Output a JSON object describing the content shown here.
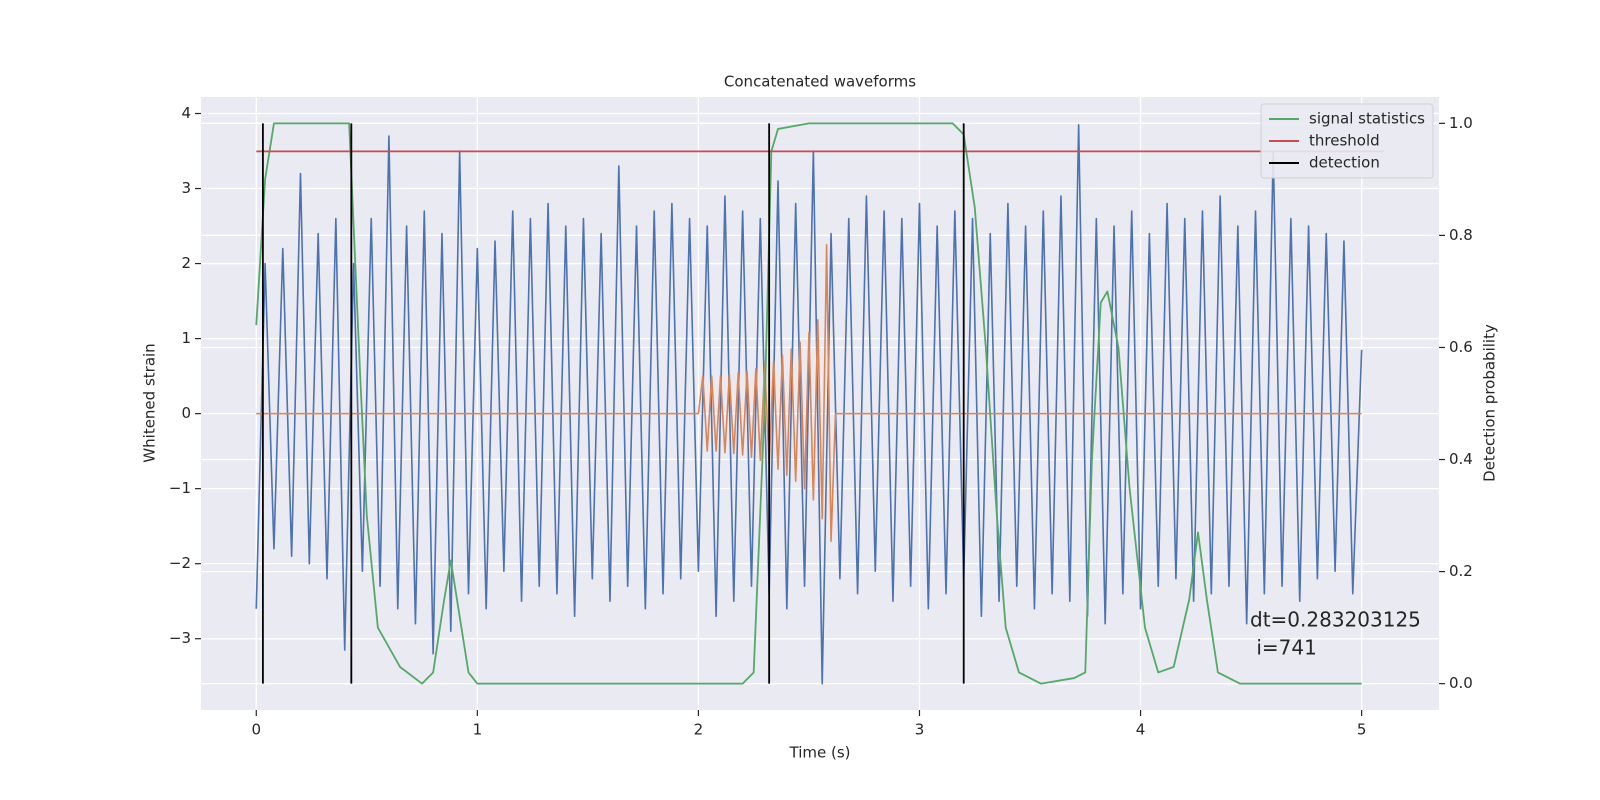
{
  "chart_data": {
    "type": "line",
    "title": "Concatenated waveforms",
    "x_label": "Time (s)",
    "y_label": "Whitened strain",
    "y2_label": "Detection probability",
    "xlim": [
      -0.25,
      5.35
    ],
    "xticks": [
      0,
      1,
      2,
      3,
      4,
      5
    ],
    "ylim": [
      -3.95,
      4.22
    ],
    "yticks": [
      {
        "value": -3,
        "label": "−3"
      },
      {
        "value": -2,
        "label": "−2"
      },
      {
        "value": -1,
        "label": "−1"
      },
      0,
      1,
      2,
      3,
      4
    ],
    "y2lim": [
      -0.047,
      1.047
    ],
    "y2ticks": [
      {
        "value": 0,
        "label": "0.0"
      },
      0.2,
      0.4,
      0.6,
      0.8,
      {
        "value": 1,
        "label": "1.0"
      }
    ],
    "grid": true,
    "legend": "upper right",
    "annotation": [
      "dt=0.283203125",
      " i=741"
    ],
    "series": [
      {
        "color": "#4c72b0",
        "axis": "y",
        "x": [
          0,
          0.04,
          0.08,
          0.12,
          0.16,
          0.2,
          0.24,
          0.28,
          0.32,
          0.36,
          0.4,
          0.44,
          0.48,
          0.52,
          0.56,
          0.6,
          0.64,
          0.68,
          0.72,
          0.76,
          0.8,
          0.84,
          0.88,
          0.92,
          0.96,
          1,
          1.04,
          1.08,
          1.12,
          1.16,
          1.2,
          1.24,
          1.28,
          1.32,
          1.36,
          1.4,
          1.44,
          1.48,
          1.52,
          1.56,
          1.6,
          1.64,
          1.68,
          1.72,
          1.76,
          1.8,
          1.84,
          1.88,
          1.92,
          1.96,
          2,
          2.04,
          2.08,
          2.12,
          2.16,
          2.2,
          2.24,
          2.28,
          2.32,
          2.36,
          2.4,
          2.44,
          2.48,
          2.52,
          2.56,
          2.6,
          2.64,
          2.68,
          2.72,
          2.76,
          2.8,
          2.84,
          2.88,
          2.92,
          2.96,
          3,
          3.04,
          3.08,
          3.12,
          3.16,
          3.2,
          3.24,
          3.28,
          3.32,
          3.36,
          3.4,
          3.44,
          3.48,
          3.52,
          3.56,
          3.6,
          3.64,
          3.68,
          3.72,
          3.76,
          3.8,
          3.84,
          3.88,
          3.92,
          3.96,
          4,
          4.04,
          4.08,
          4.12,
          4.16,
          4.2,
          4.24,
          4.28,
          4.32,
          4.36,
          4.4,
          4.44,
          4.48,
          4.52,
          4.56,
          4.6,
          4.64,
          4.68,
          4.72,
          4.76,
          4.8,
          4.84,
          4.88,
          4.92,
          4.96,
          5
        ],
        "values": [
          -2.6,
          2.0,
          -1.8,
          2.2,
          -1.9,
          3.2,
          -2.0,
          2.4,
          -2.2,
          2.6,
          -3.15,
          2.0,
          -2.1,
          2.6,
          -2.3,
          3.7,
          -2.6,
          2.5,
          -2.8,
          2.7,
          -3.2,
          2.4,
          -2.9,
          3.5,
          -2.4,
          2.2,
          -2.6,
          2.3,
          -2.1,
          2.7,
          -2.5,
          2.6,
          -2.3,
          2.8,
          -2.4,
          2.5,
          -2.7,
          2.6,
          -2.2,
          2.4,
          -2.5,
          3.3,
          -2.3,
          2.5,
          -2.6,
          2.7,
          -2.4,
          2.8,
          -2.2,
          2.6,
          -2.1,
          2.5,
          -2.7,
          2.9,
          -2.5,
          2.7,
          -2.3,
          2.6,
          -2.4,
          3.1,
          -2.6,
          2.8,
          -2.3,
          3.5,
          -3.6,
          2.4,
          -2.2,
          2.6,
          -2.4,
          2.9,
          -2.1,
          2.7,
          -2.5,
          2.6,
          -2.3,
          2.8,
          -2.6,
          2.5,
          -2.4,
          2.7,
          -2.2,
          2.6,
          -2.7,
          2.4,
          -2.5,
          2.8,
          -2.3,
          2.5,
          -2.6,
          2.7,
          -2.4,
          2.9,
          -2.5,
          3.85,
          -2.7,
          2.6,
          -2.8,
          2.5,
          -2.4,
          2.7,
          -2.6,
          2.4,
          -2.3,
          2.8,
          -2.2,
          2.6,
          -2.5,
          2.7,
          -2.4,
          2.9,
          -2.3,
          2.5,
          -2.8,
          2.7,
          -2.4,
          3.5,
          -2.3,
          2.6,
          -2.5,
          2.5,
          -2.2,
          2.4,
          -2.1,
          2.3,
          -2.4,
          0.85
        ]
      },
      {
        "color": "#dd8452",
        "axis": "y",
        "x": [
          0,
          2,
          2.02,
          2.04,
          2.06,
          2.08,
          2.1,
          2.12,
          2.14,
          2.16,
          2.18,
          2.2,
          2.22,
          2.24,
          2.26,
          2.28,
          2.3,
          2.32,
          2.34,
          2.36,
          2.38,
          2.4,
          2.42,
          2.44,
          2.46,
          2.48,
          2.5,
          2.52,
          2.54,
          2.56,
          2.58,
          2.6,
          2.62,
          5
        ],
        "values": [
          0,
          0,
          0.5,
          -0.5,
          0.5,
          -0.5,
          0.5,
          -0.52,
          0.52,
          -0.53,
          0.54,
          -0.55,
          0.56,
          -0.58,
          0.6,
          -0.62,
          0.65,
          -0.68,
          0.7,
          -0.74,
          0.78,
          -0.82,
          0.86,
          -0.9,
          0.95,
          -1.0,
          1.08,
          -1.15,
          1.25,
          -1.4,
          2.25,
          -1.7,
          0,
          0
        ]
      },
      {
        "name": "signal statistics",
        "color": "#55a868",
        "axis": "y2",
        "x": [
          0,
          0.04,
          0.08,
          0.42,
          0.47,
          0.5,
          0.55,
          0.65,
          0.75,
          0.8,
          0.85,
          0.88,
          0.92,
          0.96,
          1.0,
          2.2,
          2.25,
          2.3,
          2.33,
          2.36,
          2.5,
          3.15,
          3.2,
          3.25,
          3.3,
          3.35,
          3.39,
          3.45,
          3.55,
          3.7,
          3.75,
          3.78,
          3.82,
          3.85,
          3.9,
          3.95,
          4.02,
          4.08,
          4.15,
          4.22,
          4.26,
          4.3,
          4.35,
          4.45,
          5.0
        ],
        "values": [
          0.64,
          0.9,
          1.0,
          1.0,
          0.55,
          0.3,
          0.1,
          0.03,
          0.0,
          0.02,
          0.15,
          0.22,
          0.12,
          0.02,
          0.0,
          0.0,
          0.02,
          0.5,
          0.95,
          0.99,
          1.0,
          1.0,
          0.98,
          0.85,
          0.6,
          0.3,
          0.1,
          0.02,
          0.0,
          0.01,
          0.02,
          0.4,
          0.68,
          0.7,
          0.6,
          0.35,
          0.1,
          0.02,
          0.03,
          0.15,
          0.27,
          0.15,
          0.02,
          0.0,
          0.0
        ]
      },
      {
        "name": "threshold",
        "color": "#c44e52",
        "axis": "y2",
        "x": [
          0,
          5.1
        ],
        "values": [
          0.95,
          0.95
        ]
      },
      {
        "name": "detection",
        "color": "#000000",
        "axis": "y2",
        "x": [
          0.03,
          0.03,
          0.03,
          0.43,
          0.43,
          0.43,
          2.32,
          2.32,
          2.32,
          3.2,
          3.2
        ],
        "values": [
          0,
          1,
          null,
          0,
          1,
          null,
          0,
          1,
          null,
          0,
          1
        ]
      }
    ]
  }
}
